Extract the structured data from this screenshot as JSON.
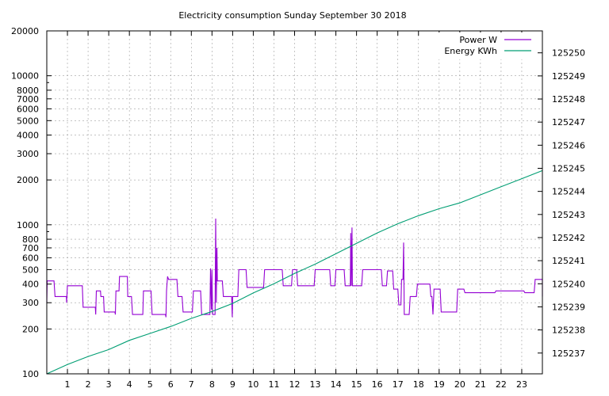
{
  "chart_data": {
    "type": "line",
    "title": "Electricity consumption Sunday September 30 2018",
    "x_ticks": [
      1,
      2,
      3,
      4,
      5,
      6,
      7,
      8,
      9,
      10,
      11,
      12,
      13,
      14,
      15,
      16,
      17,
      18,
      19,
      20,
      21,
      22,
      23
    ],
    "y_ticks": [
      100,
      200,
      300,
      400,
      500,
      600,
      700,
      800,
      1000,
      2000,
      3000,
      4000,
      5000,
      6000,
      7000,
      8000,
      10000,
      20000
    ],
    "y2_ticks": [
      125237,
      125238,
      125239,
      125240,
      125241,
      125242,
      125243,
      125244,
      125245,
      125246,
      125247,
      125248,
      125249,
      125250
    ],
    "xlim": [
      0,
      24
    ],
    "ylim": [
      100,
      20000
    ],
    "y_scale": "log",
    "y2lim": [
      125236.1,
      125250.95
    ],
    "grid": true,
    "legend_position": "top-right",
    "series": [
      {
        "name": "Power W",
        "axis": "y",
        "color": "#9400d3",
        "points": [
          [
            0,
            300
          ],
          [
            0.02,
            420
          ],
          [
            0.35,
            420
          ],
          [
            0.4,
            330
          ],
          [
            0.95,
            330
          ],
          [
            0.96,
            300
          ],
          [
            1.0,
            390
          ],
          [
            1.72,
            390
          ],
          [
            1.76,
            280
          ],
          [
            2.35,
            280
          ],
          [
            2.37,
            250
          ],
          [
            2.4,
            360
          ],
          [
            2.6,
            360
          ],
          [
            2.62,
            330
          ],
          [
            2.75,
            330
          ],
          [
            2.78,
            260
          ],
          [
            3.3,
            260
          ],
          [
            3.32,
            250
          ],
          [
            3.35,
            360
          ],
          [
            3.5,
            360
          ],
          [
            3.52,
            450
          ],
          [
            3.9,
            450
          ],
          [
            3.92,
            330
          ],
          [
            4.1,
            330
          ],
          [
            4.15,
            250
          ],
          [
            4.65,
            250
          ],
          [
            4.68,
            360
          ],
          [
            5.05,
            360
          ],
          [
            5.1,
            250
          ],
          [
            5.75,
            250
          ],
          [
            5.77,
            240
          ],
          [
            5.8,
            360
          ],
          [
            5.85,
            450
          ],
          [
            5.9,
            430
          ],
          [
            6.3,
            430
          ],
          [
            6.35,
            330
          ],
          [
            6.55,
            330
          ],
          [
            6.6,
            260
          ],
          [
            7.05,
            260
          ],
          [
            7.1,
            360
          ],
          [
            7.45,
            360
          ],
          [
            7.5,
            250
          ],
          [
            7.9,
            250
          ],
          [
            7.93,
            510
          ],
          [
            7.97,
            270
          ],
          [
            8.0,
            500
          ],
          [
            8.03,
            250
          ],
          [
            8.15,
            250
          ],
          [
            8.18,
            1100
          ],
          [
            8.21,
            300
          ],
          [
            8.24,
            700
          ],
          [
            8.26,
            420
          ],
          [
            8.5,
            420
          ],
          [
            8.55,
            330
          ],
          [
            8.95,
            330
          ],
          [
            8.98,
            240
          ],
          [
            9.0,
            330
          ],
          [
            9.25,
            330
          ],
          [
            9.3,
            500
          ],
          [
            9.65,
            500
          ],
          [
            9.7,
            380
          ],
          [
            10.5,
            380
          ],
          [
            10.55,
            500
          ],
          [
            11.4,
            500
          ],
          [
            11.45,
            390
          ],
          [
            11.85,
            390
          ],
          [
            11.9,
            500
          ],
          [
            12.1,
            500
          ],
          [
            12.15,
            390
          ],
          [
            12.95,
            390
          ],
          [
            13.0,
            500
          ],
          [
            13.7,
            500
          ],
          [
            13.75,
            390
          ],
          [
            13.95,
            390
          ],
          [
            14.0,
            500
          ],
          [
            14.4,
            500
          ],
          [
            14.45,
            390
          ],
          [
            14.7,
            390
          ],
          [
            14.72,
            880
          ],
          [
            14.74,
            390
          ],
          [
            14.78,
            960
          ],
          [
            14.8,
            390
          ],
          [
            15.25,
            390
          ],
          [
            15.3,
            500
          ],
          [
            16.2,
            500
          ],
          [
            16.25,
            390
          ],
          [
            16.45,
            390
          ],
          [
            16.5,
            490
          ],
          [
            16.75,
            490
          ],
          [
            16.8,
            370
          ],
          [
            17.0,
            370
          ],
          [
            17.05,
            290
          ],
          [
            17.15,
            290
          ],
          [
            17.18,
            430
          ],
          [
            17.25,
            430
          ],
          [
            17.28,
            760
          ],
          [
            17.31,
            250
          ],
          [
            17.55,
            250
          ],
          [
            17.6,
            330
          ],
          [
            17.9,
            330
          ],
          [
            17.95,
            400
          ],
          [
            18.55,
            400
          ],
          [
            18.6,
            330
          ],
          [
            18.65,
            330
          ],
          [
            18.7,
            250
          ],
          [
            18.75,
            370
          ],
          [
            19.05,
            370
          ],
          [
            19.1,
            260
          ],
          [
            19.85,
            260
          ],
          [
            19.9,
            370
          ],
          [
            20.2,
            370
          ],
          [
            20.25,
            350
          ],
          [
            21.7,
            350
          ],
          [
            21.75,
            360
          ],
          [
            23.1,
            360
          ],
          [
            23.15,
            350
          ],
          [
            23.6,
            350
          ],
          [
            23.65,
            430
          ],
          [
            24.0,
            430
          ],
          [
            24.0,
            330
          ]
        ]
      },
      {
        "name": "Energy KWh",
        "axis": "y2",
        "color": "#009e73",
        "points": [
          [
            0,
            125236.1
          ],
          [
            1,
            125236.5
          ],
          [
            2,
            125236.85
          ],
          [
            3,
            125237.15
          ],
          [
            4,
            125237.55
          ],
          [
            5,
            125237.85
          ],
          [
            6,
            125238.15
          ],
          [
            7,
            125238.5
          ],
          [
            8,
            125238.8
          ],
          [
            9,
            125239.15
          ],
          [
            10,
            125239.6
          ],
          [
            11,
            125240.0
          ],
          [
            12,
            125240.45
          ],
          [
            13,
            125240.85
          ],
          [
            14,
            125241.3
          ],
          [
            15,
            125241.75
          ],
          [
            16,
            125242.2
          ],
          [
            17,
            125242.6
          ],
          [
            18,
            125242.95
          ],
          [
            19,
            125243.25
          ],
          [
            20,
            125243.5
          ],
          [
            21,
            125243.85
          ],
          [
            22,
            125244.2
          ],
          [
            23,
            125244.55
          ],
          [
            24,
            125244.9
          ]
        ]
      }
    ]
  }
}
